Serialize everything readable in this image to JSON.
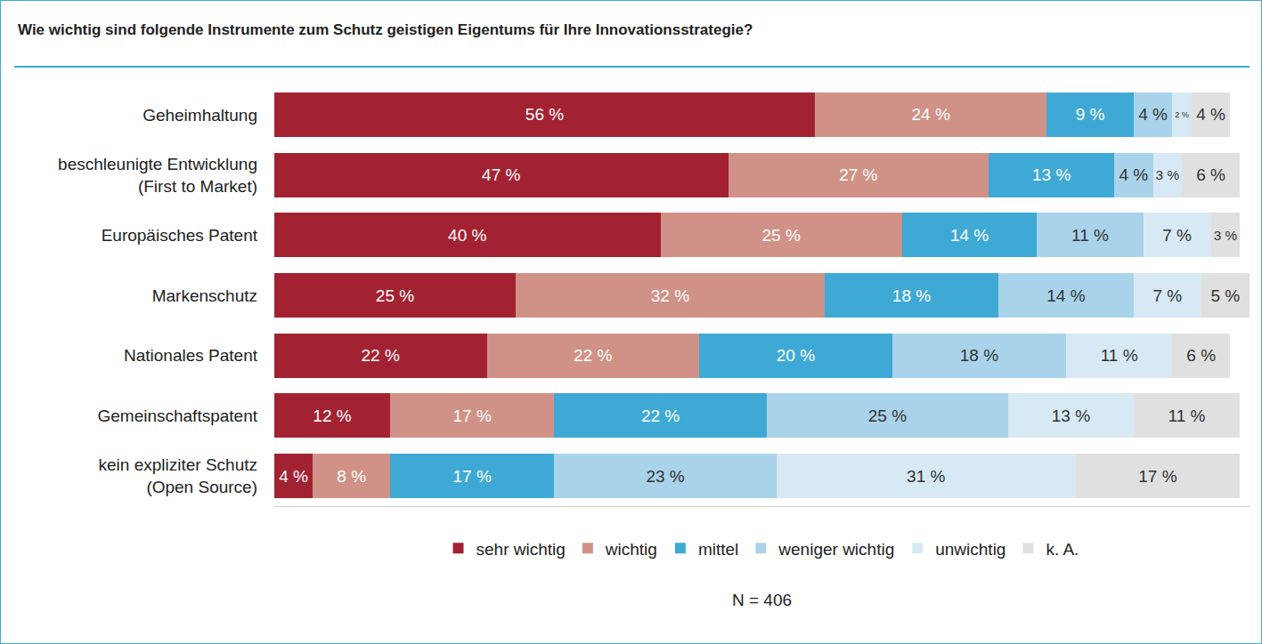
{
  "chart_data": {
    "type": "bar",
    "orientation": "horizontal",
    "stacked": true,
    "data_labels": true,
    "tick_labels": "y",
    "grid": false,
    "legend": "bottom",
    "title": "Wie wichtig sind folgende Instrumente zum Schutz geistigen Eigentums für Ihre Innovationsstrategie?",
    "annotations": [
      "N = 406"
    ],
    "xlim": [
      0,
      101
    ],
    "categories": [
      "Geheimhaltung",
      "beschleunigte Entwicklung\n(First to Market)",
      "Europäisches Patent",
      "Markenschutz",
      "Nationales Patent",
      "Gemeinschaftspatent",
      "kein expliziter Schutz\n(Open Source)"
    ],
    "series": [
      {
        "name": "sehr wichtig",
        "color": "#a32232",
        "values": [
          56,
          47,
          40,
          25,
          22,
          12,
          4
        ],
        "value_labels": [
          "56 %",
          "47 %",
          "40 %",
          "25 %",
          "22 %",
          "12 %",
          "4 %"
        ]
      },
      {
        "name": "wichtig",
        "color": "#d09287",
        "values": [
          24,
          27,
          25,
          32,
          22,
          17,
          8
        ],
        "value_labels": [
          "24 %",
          "27 %",
          "25 %",
          "32 %",
          "22 %",
          "17 %",
          "8 %"
        ]
      },
      {
        "name": "mittel",
        "color": "#3fa9d6",
        "values": [
          9,
          13,
          14,
          18,
          20,
          22,
          17
        ],
        "value_labels": [
          "9 %",
          "13 %",
          "14 %",
          "18 %",
          "20 %",
          "22 %",
          "17 %"
        ]
      },
      {
        "name": "weniger wichtig",
        "color": "#a9d3ea",
        "values": [
          4,
          4,
          11,
          14,
          18,
          25,
          23
        ],
        "value_labels": [
          "4 %",
          "4 %",
          "11 %",
          "14 %",
          "18 %",
          "25 %",
          "23 %"
        ]
      },
      {
        "name": "unwichtig",
        "color": "#d7e9f5",
        "values": [
          2,
          3,
          7,
          7,
          11,
          13,
          31
        ],
        "value_labels": [
          "2 %",
          "3 %",
          "7 %",
          "7 %",
          "11 %",
          "13 %",
          "31 %"
        ]
      },
      {
        "name": "k. A.",
        "color": "#e0e0e0",
        "values": [
          4,
          6,
          3,
          5,
          6,
          11,
          17
        ],
        "value_labels": [
          "4 %",
          "6 %",
          "3 %",
          "5 %",
          "6 %",
          "11 %",
          "17 %"
        ]
      }
    ]
  }
}
